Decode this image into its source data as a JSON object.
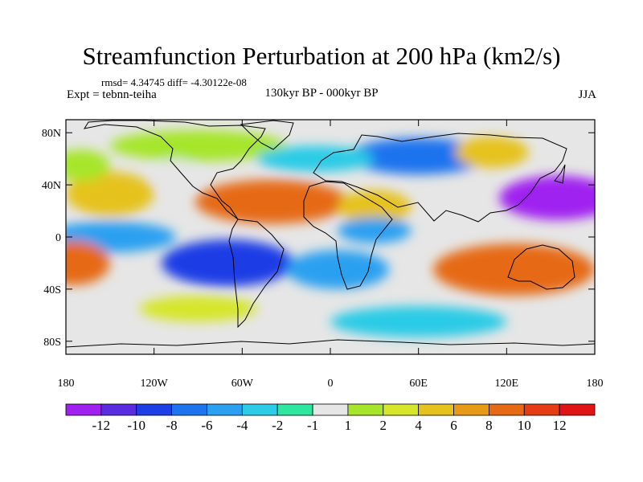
{
  "header": {
    "title": "Streamfunction Perturbation at 200 hPa (km2/s)",
    "stats": "rmsd= 4.34745  diff= -4.30122e-08",
    "expt": "Expt = tebnn-teiha",
    "period": "130kyr BP - 000kyr BP",
    "season": "JJA"
  },
  "axes": {
    "lat_labels": [
      "80N",
      "40N",
      "0",
      "40S",
      "80S"
    ],
    "lon_labels": [
      "180",
      "120W",
      "60W",
      "0",
      "60E",
      "120E",
      "180"
    ]
  },
  "colorbar": {
    "labels": [
      "-12",
      "-10",
      "-8",
      "-6",
      "-4",
      "-2",
      "-1",
      "1",
      "2",
      "4",
      "6",
      "8",
      "10",
      "12"
    ],
    "colors": [
      "#a020f0",
      "#5a2ce0",
      "#1e3ee6",
      "#1e73ee",
      "#2aa0f0",
      "#2ccbe6",
      "#2ee6a0",
      "#e6e6e6",
      "#a6e62a",
      "#d6e62a",
      "#e6c21e",
      "#e69a16",
      "#e66a14",
      "#e63c14",
      "#e01414"
    ]
  },
  "map_fields": [
    {
      "name": "north-pacific-positive",
      "lon": -150,
      "lat": 33,
      "rx": 30,
      "ry": 17,
      "level": 10
    },
    {
      "name": "east-pacific-positive",
      "lon": -170,
      "lat": 55,
      "rx": 20,
      "ry": 12,
      "level": 8
    },
    {
      "name": "arctic-america-positive",
      "lon": -90,
      "lat": 70,
      "rx": 60,
      "ry": 12,
      "level": 8
    },
    {
      "name": "canada-negative",
      "lon": -105,
      "lat": 48,
      "rx": 14,
      "ry": 12,
      "level": 7
    },
    {
      "name": "atlantic-africa-positive",
      "lon": -40,
      "lat": 27,
      "rx": 52,
      "ry": 17,
      "level": 12
    },
    {
      "name": "africa-positive",
      "lon": 30,
      "lat": 23,
      "rx": 25,
      "ry": 13,
      "level": 10
    },
    {
      "name": "siberia-negative",
      "lon": 60,
      "lat": 62,
      "rx": 48,
      "ry": 14,
      "level": 3
    },
    {
      "name": "north-atlantic-negative",
      "lon": -10,
      "lat": 60,
      "rx": 40,
      "ry": 10,
      "level": 5
    },
    {
      "name": "east-asia-positive",
      "lon": 110,
      "lat": 65,
      "rx": 25,
      "ry": 12,
      "level": 10
    },
    {
      "name": "west-pacific-negative",
      "lon": 155,
      "lat": 30,
      "rx": 40,
      "ry": 17,
      "level": 0
    },
    {
      "name": "tropical-pacific-negative",
      "lon": -150,
      "lat": 0,
      "rx": 45,
      "ry": 12,
      "level": 4
    },
    {
      "name": "south-pacific-positive",
      "lon": -175,
      "lat": -20,
      "rx": 25,
      "ry": 17,
      "level": 12
    },
    {
      "name": "south-america-negative",
      "lon": -70,
      "lat": -20,
      "rx": 45,
      "ry": 18,
      "level": 2
    },
    {
      "name": "south-atlantic-negative",
      "lon": 5,
      "lat": -25,
      "rx": 35,
      "ry": 15,
      "level": 4
    },
    {
      "name": "indian-ocean-negative",
      "lon": 30,
      "lat": 5,
      "rx": 25,
      "ry": 10,
      "level": 4
    },
    {
      "name": "australia-positive",
      "lon": 125,
      "lat": -25,
      "rx": 55,
      "ry": 20,
      "level": 12
    },
    {
      "name": "southern-ocean-positive",
      "lon": -90,
      "lat": -55,
      "rx": 40,
      "ry": 10,
      "level": 9
    },
    {
      "name": "antarctic-negative",
      "lon": 60,
      "lat": -65,
      "rx": 60,
      "ry": 12,
      "level": 5
    }
  ]
}
